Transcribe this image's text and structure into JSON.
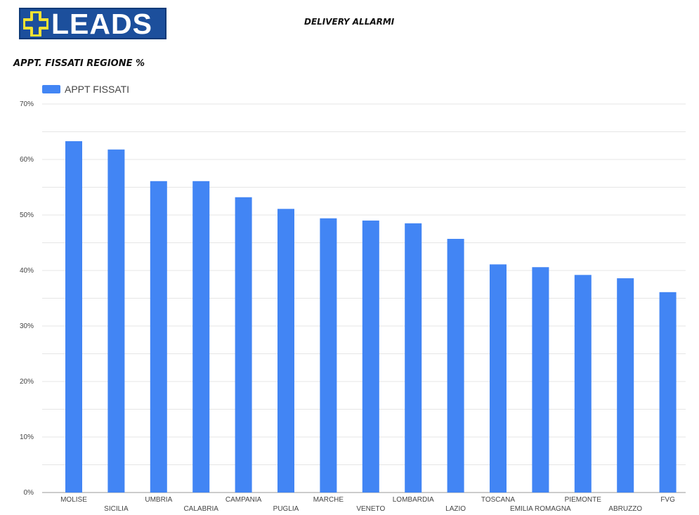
{
  "header": {
    "logo_text": "LEADS",
    "title": "DELIVERY ALLARMI"
  },
  "colors": {
    "logo_bg": "#1c4f9c",
    "logo_cross": "#f2e233",
    "bar": "#4285f4",
    "grid": "#e5e5e5"
  },
  "chart_data": {
    "type": "bar",
    "title": "APPT. FISSATI REGIONE %",
    "legend": {
      "position": "top-left",
      "entries": [
        "APPT FISSATI"
      ]
    },
    "ylim": [
      0,
      70
    ],
    "yticks": [
      "0%",
      "10%",
      "20%",
      "30%",
      "40%",
      "50%",
      "60%",
      "70%"
    ],
    "grid": true,
    "categories": [
      "MOLISE",
      "SICILIA",
      "UMBRIA",
      "CALABRIA",
      "CAMPANIA",
      "PUGLIA",
      "MARCHE",
      "VENETO",
      "LOMBARDIA",
      "LAZIO",
      "TOSCANA",
      "EMILIA ROMAGNA",
      "PIEMONTE",
      "ABRUZZO",
      "FVG"
    ],
    "series": [
      {
        "name": "APPT FISSATI",
        "values": [
          63.3,
          61.8,
          56.1,
          56.1,
          53.2,
          51.1,
          49.4,
          49.0,
          48.5,
          45.7,
          41.1,
          40.6,
          39.2,
          38.6,
          36.1
        ]
      }
    ]
  }
}
